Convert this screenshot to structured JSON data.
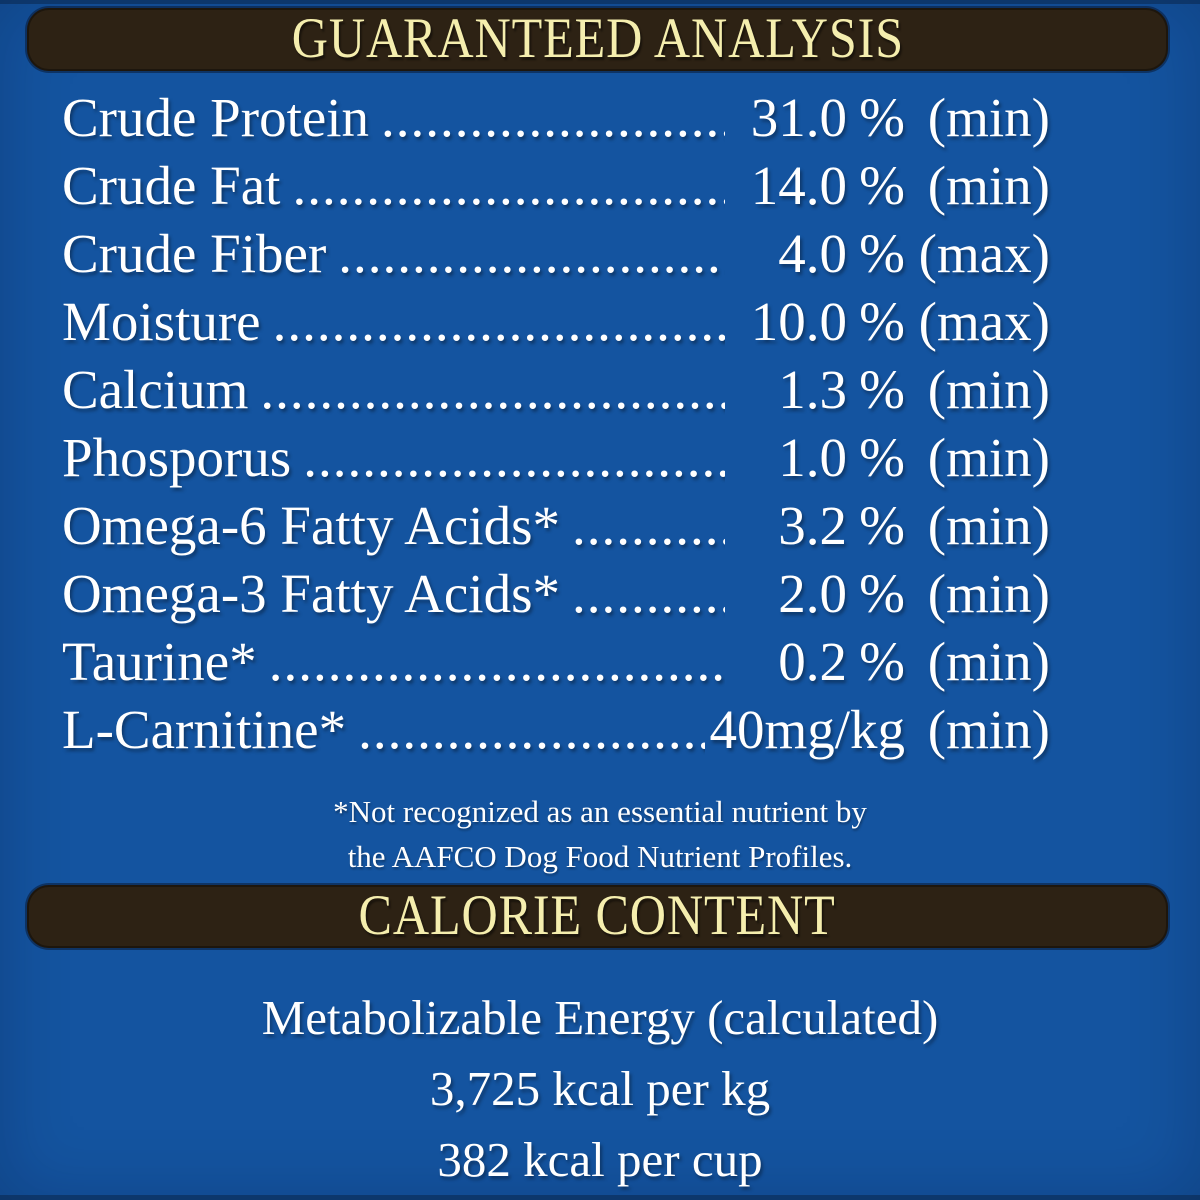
{
  "colors": {
    "background": "#1454a0",
    "bar": "#2d2214",
    "bar_text": "#f5eeae",
    "text": "#ffffff"
  },
  "guaranteed_analysis": {
    "title": "GUARANTEED ANALYSIS",
    "leader_dots": "................................................................................",
    "rows": [
      {
        "label": "Crude Protein",
        "value": "31.0",
        "unit": "%",
        "limit": "(min)"
      },
      {
        "label": "Crude Fat",
        "value": "14.0",
        "unit": "%",
        "limit": "(min)"
      },
      {
        "label": "Crude Fiber",
        "value": "4.0",
        "unit": "%",
        "limit": "(max)"
      },
      {
        "label": "Moisture",
        "value": "10.0",
        "unit": "%",
        "limit": "(max)"
      },
      {
        "label": "Calcium",
        "value": "1.3",
        "unit": "%",
        "limit": "(min)"
      },
      {
        "label": "Phosporus",
        "value": "1.0",
        "unit": "%",
        "limit": "(min)"
      },
      {
        "label": "Omega-6 Fatty Acids*",
        "value": "3.2",
        "unit": "%",
        "limit": "(min)"
      },
      {
        "label": "Omega-3 Fatty Acids*",
        "value": "2.0",
        "unit": "%",
        "limit": "(min)"
      },
      {
        "label": "Taurine*",
        "value": "0.2",
        "unit": "%",
        "limit": "(min)"
      },
      {
        "label": "L-Carnitine*",
        "value": "40mg/kg",
        "unit": "",
        "limit": "(min)"
      }
    ],
    "footnote": [
      "*Not recognized as an essential nutrient by",
      "the AAFCO Dog Food Nutrient Profiles."
    ]
  },
  "calorie_content": {
    "title": "CALORIE CONTENT",
    "lines": [
      "Metabolizable Energy (calculated)",
      "3,725 kcal per kg",
      "382 kcal per cup"
    ]
  }
}
